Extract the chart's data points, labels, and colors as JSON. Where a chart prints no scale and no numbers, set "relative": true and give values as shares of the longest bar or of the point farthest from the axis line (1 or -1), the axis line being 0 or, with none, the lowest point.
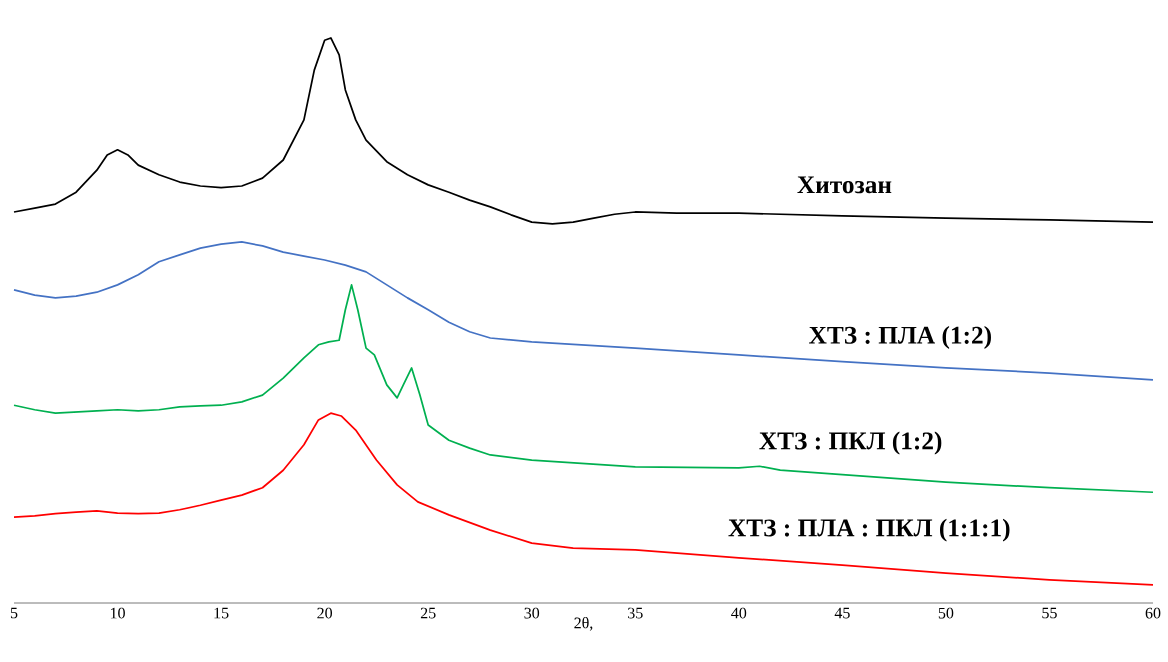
{
  "chart_data": {
    "type": "line",
    "xlabel": "2θ,",
    "relative": true,
    "xlim": [
      5,
      60
    ],
    "xticks": [
      5,
      10,
      15,
      20,
      25,
      30,
      35,
      40,
      45,
      50,
      55,
      60
    ],
    "legend": false,
    "grid": false,
    "marker": "none",
    "line_style": "solid",
    "series": [
      {
        "name": "Хитозан",
        "color": "#000000",
        "x": [
          5,
          6,
          7,
          8,
          9,
          9.5,
          10,
          10.5,
          11,
          12,
          13,
          14,
          15,
          16,
          17,
          18,
          19,
          19.5,
          20,
          20.3,
          20.7,
          21,
          21.5,
          22,
          23,
          24,
          25,
          26,
          27,
          28,
          29,
          30,
          31,
          32,
          33,
          34,
          35,
          37,
          40,
          45,
          50,
          55,
          60
        ],
        "values": [
          0.692,
          0.699,
          0.706,
          0.727,
          0.766,
          0.793,
          0.802,
          0.793,
          0.775,
          0.758,
          0.745,
          0.738,
          0.735,
          0.738,
          0.752,
          0.784,
          0.855,
          0.943,
          0.996,
          1,
          0.97,
          0.908,
          0.855,
          0.819,
          0.781,
          0.758,
          0.74,
          0.727,
          0.713,
          0.701,
          0.687,
          0.674,
          0.671,
          0.674,
          0.681,
          0.688,
          0.692,
          0.69,
          0.69,
          0.685,
          0.681,
          0.678,
          0.674
        ]
      },
      {
        "name": "ХТЗ : ПЛА (1:2)",
        "color": "#4472c4",
        "x": [
          5,
          6,
          7,
          8,
          9,
          10,
          11,
          12,
          13,
          14,
          15,
          16,
          17,
          18,
          19,
          20,
          21,
          22,
          23,
          24,
          25,
          26,
          27,
          28,
          30,
          35,
          40,
          45,
          50,
          55,
          60
        ],
        "values": [
          0.554,
          0.545,
          0.54,
          0.543,
          0.55,
          0.563,
          0.581,
          0.604,
          0.616,
          0.628,
          0.635,
          0.639,
          0.632,
          0.621,
          0.614,
          0.607,
          0.598,
          0.586,
          0.563,
          0.54,
          0.519,
          0.497,
          0.48,
          0.469,
          0.462,
          0.451,
          0.439,
          0.427,
          0.416,
          0.407,
          0.395
        ]
      },
      {
        "name": "ХТЗ : ПКЛ (1:2)",
        "color": "#00b050",
        "x": [
          5,
          6,
          7,
          8,
          9,
          10,
          11,
          12,
          13,
          14,
          15,
          16,
          17,
          18,
          19,
          19.7,
          20.2,
          20.7,
          21,
          21.3,
          21.6,
          22,
          22.4,
          23,
          23.5,
          23.8,
          24.2,
          24.6,
          25,
          26,
          27,
          28,
          30,
          35,
          40,
          41,
          42,
          45,
          50,
          55,
          60
        ],
        "values": [
          0.35,
          0.342,
          0.336,
          0.338,
          0.34,
          0.342,
          0.34,
          0.342,
          0.347,
          0.349,
          0.35,
          0.356,
          0.368,
          0.398,
          0.434,
          0.457,
          0.462,
          0.465,
          0.519,
          0.563,
          0.519,
          0.451,
          0.439,
          0.386,
          0.363,
          0.386,
          0.416,
          0.368,
          0.315,
          0.288,
          0.274,
          0.262,
          0.253,
          0.241,
          0.239,
          0.242,
          0.235,
          0.227,
          0.214,
          0.204,
          0.196
        ]
      },
      {
        "name": "ХТЗ : ПЛА : ПКЛ (1:1:1)",
        "color": "#ff0000",
        "x": [
          5,
          6,
          7,
          8,
          9,
          10,
          11,
          12,
          13,
          14,
          15,
          16,
          17,
          18,
          19,
          19.7,
          20.3,
          20.8,
          21.5,
          22.5,
          23.5,
          24.5,
          26,
          28,
          30,
          32,
          35,
          40,
          45,
          50,
          55,
          60
        ],
        "values": [
          0.152,
          0.154,
          0.158,
          0.161,
          0.163,
          0.159,
          0.158,
          0.159,
          0.165,
          0.173,
          0.182,
          0.191,
          0.204,
          0.235,
          0.28,
          0.324,
          0.336,
          0.331,
          0.306,
          0.253,
          0.209,
          0.179,
          0.156,
          0.129,
          0.106,
          0.097,
          0.094,
          0.08,
          0.067,
          0.053,
          0.041,
          0.032
        ]
      }
    ]
  }
}
